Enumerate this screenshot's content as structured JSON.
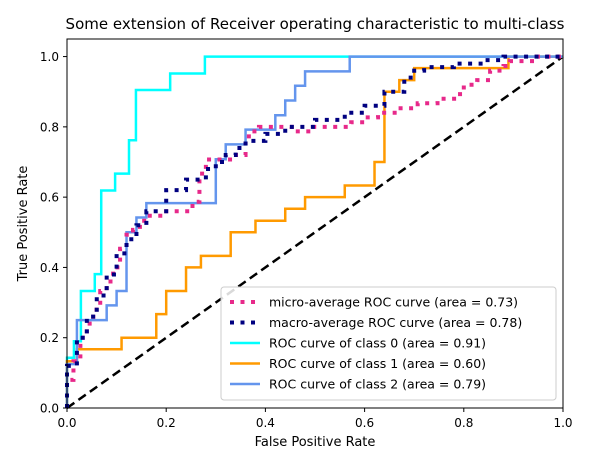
{
  "chart_data": {
    "type": "line",
    "title": "Some extension of Receiver operating characteristic to multi-class",
    "xlabel": "False Positive Rate",
    "ylabel": "True Positive Rate",
    "xlim": [
      0.0,
      1.0
    ],
    "ylim": [
      0.0,
      1.05
    ],
    "xticks": [
      0.0,
      0.2,
      0.4,
      0.6,
      0.8,
      1.0
    ],
    "yticks": [
      0.0,
      0.2,
      0.4,
      0.6,
      0.8,
      1.0
    ],
    "xtick_labels": [
      "0.0",
      "0.2",
      "0.4",
      "0.6",
      "0.8",
      "1.0"
    ],
    "ytick_labels": [
      "0.0",
      "0.2",
      "0.4",
      "0.6",
      "0.8",
      "1.0"
    ],
    "legend_position": "lower-right",
    "series": [
      {
        "name": "micro-average ROC curve (area = 0.73)",
        "color": "#e7298a",
        "style": "dotted",
        "x": [
          0.0,
          0.0,
          0.013,
          0.013,
          0.027,
          0.027,
          0.04,
          0.04,
          0.053,
          0.053,
          0.067,
          0.067,
          0.08,
          0.08,
          0.093,
          0.093,
          0.107,
          0.107,
          0.12,
          0.12,
          0.133,
          0.133,
          0.147,
          0.147,
          0.16,
          0.16,
          0.2,
          0.2,
          0.253,
          0.253,
          0.267,
          0.267,
          0.28,
          0.28,
          0.333,
          0.333,
          0.36,
          0.36,
          0.373,
          0.373,
          0.387,
          0.387,
          0.453,
          0.453,
          0.493,
          0.493,
          0.573,
          0.573,
          0.6,
          0.6,
          0.627,
          0.627,
          0.667,
          0.667,
          0.707,
          0.707,
          0.747,
          0.747,
          0.787,
          0.787,
          0.8,
          0.8,
          0.827,
          0.827,
          0.853,
          0.853,
          0.88,
          0.88,
          0.893,
          0.893,
          0.947,
          0.947,
          1.0
        ],
        "y": [
          0.0,
          0.08,
          0.08,
          0.133,
          0.133,
          0.2,
          0.2,
          0.24,
          0.24,
          0.28,
          0.28,
          0.333,
          0.333,
          0.36,
          0.36,
          0.4,
          0.4,
          0.453,
          0.453,
          0.493,
          0.493,
          0.507,
          0.507,
          0.533,
          0.533,
          0.547,
          0.547,
          0.56,
          0.56,
          0.587,
          0.587,
          0.667,
          0.667,
          0.707,
          0.707,
          0.72,
          0.72,
          0.773,
          0.773,
          0.787,
          0.787,
          0.8,
          0.8,
          0.787,
          0.787,
          0.8,
          0.8,
          0.813,
          0.813,
          0.827,
          0.827,
          0.84,
          0.84,
          0.853,
          0.853,
          0.867,
          0.867,
          0.88,
          0.88,
          0.893,
          0.893,
          0.92,
          0.92,
          0.933,
          0.933,
          0.96,
          0.96,
          0.973,
          0.973,
          0.987,
          0.987,
          1.0,
          1.0
        ]
      },
      {
        "name": "macro-average ROC curve (area = 0.78)",
        "color": "#000080",
        "style": "dotted",
        "x": [
          0.0,
          0.0,
          0.02,
          0.02,
          0.04,
          0.04,
          0.06,
          0.06,
          0.08,
          0.08,
          0.1,
          0.1,
          0.12,
          0.12,
          0.14,
          0.14,
          0.16,
          0.16,
          0.2,
          0.2,
          0.24,
          0.24,
          0.28,
          0.28,
          0.3,
          0.3,
          0.32,
          0.32,
          0.34,
          0.34,
          0.36,
          0.36,
          0.4,
          0.4,
          0.44,
          0.44,
          0.5,
          0.5,
          0.56,
          0.56,
          0.6,
          0.6,
          0.64,
          0.64,
          0.68,
          0.68,
          0.7,
          0.7,
          0.72,
          0.72,
          0.78,
          0.78,
          0.84,
          0.84,
          0.88,
          0.88,
          1.0
        ],
        "y": [
          0.0,
          0.12,
          0.12,
          0.2,
          0.2,
          0.26,
          0.26,
          0.32,
          0.32,
          0.38,
          0.38,
          0.44,
          0.44,
          0.48,
          0.48,
          0.52,
          0.52,
          0.56,
          0.56,
          0.62,
          0.62,
          0.65,
          0.65,
          0.68,
          0.68,
          0.7,
          0.7,
          0.72,
          0.72,
          0.74,
          0.74,
          0.76,
          0.76,
          0.78,
          0.78,
          0.8,
          0.8,
          0.82,
          0.82,
          0.84,
          0.84,
          0.86,
          0.86,
          0.9,
          0.9,
          0.94,
          0.94,
          0.96,
          0.96,
          0.97,
          0.97,
          0.98,
          0.98,
          0.99,
          0.99,
          1.0,
          1.0
        ]
      },
      {
        "name": "ROC curve of class 0 (area = 0.91)",
        "color": "#00ffff",
        "style": "solid",
        "x": [
          0.0,
          0.0,
          0.014,
          0.014,
          0.028,
          0.028,
          0.056,
          0.056,
          0.069,
          0.069,
          0.097,
          0.097,
          0.111,
          0.111,
          0.125,
          0.125,
          0.139,
          0.139,
          0.153,
          0.153,
          0.208,
          0.208,
          0.278,
          0.278,
          1.0
        ],
        "y": [
          0.0,
          0.143,
          0.143,
          0.19,
          0.19,
          0.333,
          0.333,
          0.381,
          0.381,
          0.619,
          0.619,
          0.667,
          0.667,
          0.667,
          0.667,
          0.762,
          0.762,
          0.905,
          0.905,
          0.905,
          0.905,
          0.952,
          0.952,
          1.0,
          1.0
        ]
      },
      {
        "name": "ROC curve of class 1 (area = 0.60)",
        "color": "#ff9a00",
        "style": "solid",
        "x": [
          0.0,
          0.0,
          0.02,
          0.02,
          0.11,
          0.11,
          0.18,
          0.18,
          0.2,
          0.2,
          0.24,
          0.24,
          0.27,
          0.27,
          0.33,
          0.33,
          0.38,
          0.38,
          0.44,
          0.44,
          0.48,
          0.48,
          0.56,
          0.56,
          0.62,
          0.62,
          0.64,
          0.64,
          0.67,
          0.67,
          0.7,
          0.7,
          0.75,
          0.75,
          0.89,
          0.89,
          1.0
        ],
        "y": [
          0.0,
          0.133,
          0.133,
          0.167,
          0.167,
          0.2,
          0.2,
          0.267,
          0.267,
          0.333,
          0.333,
          0.4,
          0.4,
          0.433,
          0.433,
          0.5,
          0.5,
          0.533,
          0.533,
          0.567,
          0.567,
          0.6,
          0.6,
          0.633,
          0.633,
          0.7,
          0.7,
          0.9,
          0.9,
          0.933,
          0.933,
          0.967,
          0.967,
          0.967,
          0.967,
          1.0,
          1.0
        ]
      },
      {
        "name": "ROC curve of class 2 (area = 0.79)",
        "color": "#6495ed",
        "style": "solid",
        "x": [
          0.0,
          0.0,
          0.02,
          0.02,
          0.06,
          0.06,
          0.08,
          0.08,
          0.1,
          0.1,
          0.12,
          0.12,
          0.14,
          0.14,
          0.16,
          0.16,
          0.3,
          0.3,
          0.32,
          0.32,
          0.34,
          0.34,
          0.36,
          0.36,
          0.4,
          0.4,
          0.42,
          0.42,
          0.44,
          0.44,
          0.46,
          0.46,
          0.48,
          0.48,
          0.5,
          0.5,
          0.52,
          0.52,
          0.56,
          0.56,
          0.57,
          0.57,
          1.0
        ],
        "y": [
          0.0,
          0.125,
          0.125,
          0.25,
          0.25,
          0.25,
          0.25,
          0.292,
          0.292,
          0.333,
          0.333,
          0.5,
          0.5,
          0.542,
          0.542,
          0.583,
          0.583,
          0.708,
          0.708,
          0.75,
          0.75,
          0.75,
          0.75,
          0.792,
          0.792,
          0.792,
          0.792,
          0.833,
          0.833,
          0.875,
          0.875,
          0.917,
          0.917,
          0.958,
          0.958,
          0.958,
          0.958,
          0.958,
          0.958,
          0.958,
          0.958,
          1.0,
          1.0
        ]
      }
    ],
    "chance_line": {
      "x": [
        0.0,
        1.0
      ],
      "y": [
        0.0,
        1.0
      ],
      "color": "#000000",
      "style": "dashed"
    }
  }
}
